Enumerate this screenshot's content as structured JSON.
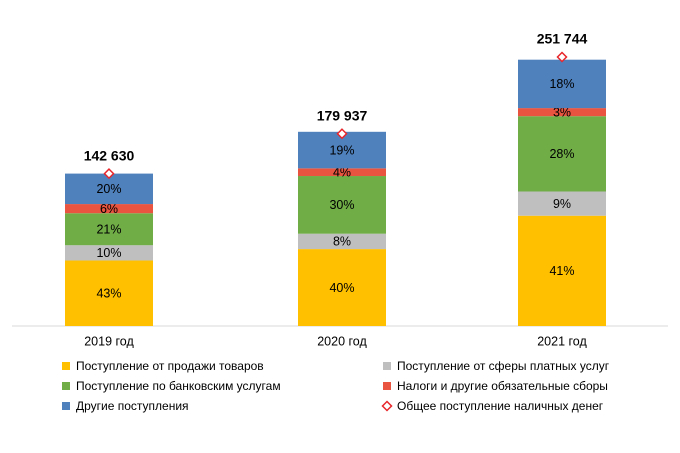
{
  "chart_data": {
    "type": "bar",
    "stacked": true,
    "categories": [
      "2019 год",
      "2020 год",
      "2021 год"
    ],
    "series": [
      {
        "name": "Поступление от продажи товаров",
        "color": "#ffc000",
        "values": [
          43,
          40,
          41
        ],
        "value_labels": [
          "43%",
          "40%",
          "41%"
        ]
      },
      {
        "name": "Поступление от сферы платных услуг",
        "color": "#bfbfbf",
        "values": [
          10,
          8,
          9
        ],
        "value_labels": [
          "10%",
          "8%",
          "9%"
        ]
      },
      {
        "name": "Поступление по банковским услугам",
        "color": "#70ad47",
        "values": [
          21,
          30,
          28
        ],
        "value_labels": [
          "21%",
          "30%",
          "28%"
        ]
      },
      {
        "name": "Налоги и другие обязательные сборы",
        "color": "#e8543f",
        "values": [
          6,
          4,
          3
        ],
        "value_labels": [
          "6%",
          "4%",
          "3%"
        ]
      },
      {
        "name": "Другие поступления",
        "color": "#4f81bd",
        "values": [
          20,
          19,
          18
        ],
        "value_labels": [
          "20%",
          "19%",
          "18%"
        ]
      }
    ],
    "total": {
      "name": "Общее поступление наличных денег",
      "color": "#e8262b",
      "values": [
        142630,
        179937,
        251744
      ],
      "value_labels": [
        "142 630",
        "179 937",
        "251 744"
      ]
    }
  }
}
